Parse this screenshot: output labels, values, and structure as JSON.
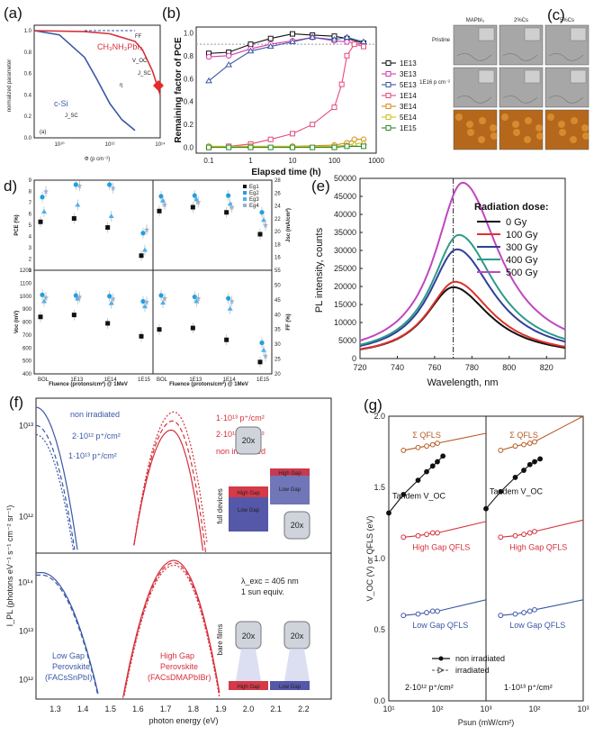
{
  "panel_labels": [
    "(a)",
    "(b)",
    "(c)",
    "d)",
    "(e)",
    "(f)",
    "(g)"
  ],
  "colors": {
    "blue": "#3a57a6",
    "red": "#d6303c",
    "orange": "#b85a21",
    "black": "#111111",
    "green": "#2c8a2c",
    "gold": "#d09a1a",
    "magenta": "#d63ab0"
  },
  "chart_data": [
    {
      "id": "a",
      "type": "line",
      "title": "",
      "xlabel": "Φ (p cm⁻²)",
      "ylabel": "normalized parameter",
      "xscale": "log",
      "xlim": [
        1000000000.0,
        100000000000000.0
      ],
      "ylim": [
        0,
        1.05
      ],
      "x_ticks": [
        "10¹⁰",
        "10¹²",
        "10¹⁴"
      ],
      "y_ticks": [
        "0.0",
        "0.2",
        "0.4",
        "0.6",
        "0.8",
        "1.0"
      ],
      "inner_label": "(a)",
      "annotations": [
        "CH₃NH₃PbI₃",
        "FF",
        "V_OC",
        "J_SC",
        "η",
        "c-Si",
        "J_SC"
      ],
      "series": [
        {
          "name": "c-Si",
          "x": [
            1000000000.0,
            10000000000.0,
            100000000000.0,
            300000000000.0,
            1000000000000.0,
            3000000000000.0,
            10000000000000.0
          ],
          "y": [
            1.0,
            0.96,
            0.75,
            0.55,
            0.32,
            0.17,
            0.07
          ]
        },
        {
          "name": "CH₃NH₃PbI₃",
          "x": [
            1000000000.0,
            100000000000.0,
            1000000000000.0,
            10000000000000.0,
            20000000000000.0,
            50000000000000.0,
            100000000000000.0
          ],
          "y": [
            1.0,
            0.99,
            0.97,
            0.9,
            0.82,
            0.62,
            0.4
          ]
        }
      ]
    },
    {
      "id": "b",
      "type": "line",
      "title": "",
      "xlabel": "Elapsed time (h)",
      "ylabel": "Remaining factor of PCE",
      "xscale": "log",
      "xlim": [
        0.05,
        1000
      ],
      "ylim": [
        -0.05,
        1.05
      ],
      "x_ticks": [
        "0.1",
        "1",
        "10",
        "100",
        "1000"
      ],
      "y_ticks": [
        "0.0",
        "0.2",
        "0.4",
        "0.6",
        "0.8",
        "1.0"
      ],
      "series": [
        {
          "name": "1E13",
          "x": [
            0.1,
            0.3,
            1,
            3,
            10,
            30,
            100,
            200,
            500
          ],
          "y": [
            0.82,
            0.83,
            0.9,
            0.95,
            0.99,
            0.98,
            0.97,
            0.95,
            0.91
          ]
        },
        {
          "name": "3E13",
          "x": [
            0.1,
            0.3,
            1,
            3,
            10,
            30,
            100,
            200,
            500
          ],
          "y": [
            0.79,
            0.8,
            0.86,
            0.9,
            0.93,
            0.96,
            0.93,
            0.92,
            0.9
          ]
        },
        {
          "name": "5E13",
          "x": [
            0.1,
            0.3,
            1,
            3,
            10,
            30,
            100,
            200,
            500
          ],
          "y": [
            0.58,
            0.72,
            0.84,
            0.88,
            0.92,
            0.96,
            0.94,
            0.96,
            0.92
          ]
        },
        {
          "name": "1E14",
          "x": [
            0.1,
            0.3,
            1,
            3,
            10,
            30,
            100,
            150,
            200,
            300,
            500
          ],
          "y": [
            0.0,
            0.01,
            0.03,
            0.07,
            0.12,
            0.2,
            0.35,
            0.55,
            0.8,
            0.9,
            0.88
          ]
        },
        {
          "name": "3E14",
          "x": [
            0.1,
            1,
            10,
            100,
            200,
            300,
            500
          ],
          "y": [
            0.01,
            0.01,
            0.01,
            0.02,
            0.04,
            0.07,
            0.07
          ]
        },
        {
          "name": "5E14",
          "x": [
            0.1,
            1,
            10,
            100,
            200,
            300,
            500
          ],
          "y": [
            0.01,
            0.01,
            0.01,
            0.01,
            0.02,
            0.03,
            0.04
          ]
        },
        {
          "name": "1E15",
          "x": [
            0.1,
            0.3,
            1,
            3,
            10,
            30,
            100,
            200,
            500
          ],
          "y": [
            0.0,
            0.0,
            0.0,
            0.0,
            0.0,
            0.0,
            0.0,
            0.01,
            0.01
          ]
        }
      ]
    },
    {
      "id": "c",
      "type": "image-grid",
      "columns": [
        "MAPbI₃",
        "2%Cs",
        "5%Cs"
      ],
      "rows": [
        "Pristine",
        "1E16 p cm⁻²",
        ""
      ],
      "colorbar": [
        "50 nm",
        "-30 nm"
      ]
    },
    {
      "id": "d",
      "type": "scatter",
      "xlabel": "Fluence (protons/cm²) @ 1MeV",
      "x_categories": [
        "BOL",
        "1E13",
        "1E14",
        "1E15"
      ],
      "legend": [
        "Eg1",
        "Eg2",
        "Eg3",
        "Eg4"
      ],
      "subplots": [
        {
          "ylabel": "PCE (%)",
          "ylim": [
            1,
            9
          ],
          "y_ticks": [
            "1",
            "2",
            "3",
            "4",
            "5",
            "6",
            "7",
            "8",
            "9"
          ],
          "series": [
            [
              5.3,
              5.6,
              4.8,
              2.3
            ],
            [
              7.5,
              8.6,
              8.6,
              4.3
            ],
            [
              6.2,
              6.8,
              5.8,
              2.8
            ],
            [
              8.0,
              8.5,
              8.3,
              4.6
            ]
          ]
        },
        {
          "ylabel": "Jsc (mA/cm²)",
          "ylim": [
            14,
            28
          ],
          "y_ticks": [
            "16",
            "18",
            "20",
            "22",
            "24",
            "26",
            "28"
          ],
          "series": [
            [
              23.2,
              23.8,
              23.0,
              19.6
            ],
            [
              25.5,
              25.6,
              25.6,
              23.0
            ],
            [
              24.8,
              25.0,
              24.3,
              21.8
            ],
            [
              24.2,
              24.6,
              23.8,
              21.0
            ]
          ]
        },
        {
          "ylabel": "Voc (mV)",
          "ylim": [
            400,
            1200
          ],
          "y_ticks": [
            "400",
            "500",
            "600",
            "700",
            "800",
            "900",
            "1000",
            "1100",
            "1200"
          ],
          "series": [
            [
              840,
              855,
              790,
              690
            ],
            [
              1010,
              1005,
              1000,
              960
            ],
            [
              960,
              980,
              945,
              920
            ],
            [
              990,
              995,
              980,
              955
            ]
          ]
        },
        {
          "ylabel": "FF (%)",
          "ylim": [
            20,
            55
          ],
          "y_ticks": [
            "20",
            "25",
            "30",
            "35",
            "40",
            "45",
            "50",
            "55"
          ],
          "series": [
            [
              35.0,
              35.5,
              31.5,
              24.0
            ],
            [
              46.5,
              46.0,
              45.5,
              30.5
            ],
            [
              44.0,
              44.5,
              42.0,
              28.0
            ],
            [
              45.5,
              45.5,
              44.5,
              26.0
            ]
          ]
        }
      ]
    },
    {
      "id": "e",
      "type": "line",
      "xlabel": "Wavelength, nm",
      "ylabel": "PL intensity, counts",
      "xlim": [
        720,
        830
      ],
      "ylim": [
        0,
        50000
      ],
      "x_ticks": [
        "720",
        "740",
        "760",
        "780",
        "800",
        "820"
      ],
      "y_ticks": [
        "0",
        "5000",
        "10000",
        "15000",
        "20000",
        "25000",
        "30000",
        "35000",
        "40000",
        "45000",
        "50000"
      ],
      "legend_title": "Radiation dose:",
      "peak_reference_nm": 770,
      "series": [
        {
          "name": "0 Gy",
          "peak": 19500,
          "center": 770
        },
        {
          "name": "100 Gy",
          "peak": 21000,
          "center": 771
        },
        {
          "name": "300 Gy",
          "peak": 30000,
          "center": 772
        },
        {
          "name": "400 Gy",
          "peak": 34000,
          "center": 773
        },
        {
          "name": "500 Gy",
          "peak": 48500,
          "center": 775
        }
      ]
    },
    {
      "id": "f",
      "type": "line",
      "xlabel": "photon energy (eV)",
      "ylabel": "I_PL (photons eV⁻¹ s⁻¹ cm⁻² sr⁻¹)",
      "xscale": "linear",
      "xlim": [
        1.23,
        2.3
      ],
      "yscale": "log",
      "x_ticks": [
        "1.3",
        "1.4",
        "1.5",
        "1.6",
        "1.7",
        "1.8",
        "1.9",
        "2.0",
        "2.1",
        "2.2"
      ],
      "top": {
        "y_ticks": [
          "10¹²",
          "10¹³"
        ],
        "labels": [
          "non irradiated",
          "2·10¹² p⁺/cm²",
          "1·10¹³ p⁺/cm²",
          "1·10¹³ p⁺/cm²",
          "2·10¹² p⁺/cm²",
          "non irradiated"
        ],
        "side_label": "full devices"
      },
      "bottom": {
        "y_ticks": [
          "10¹²",
          "10¹³",
          "10¹⁴"
        ],
        "labels": [
          "λ_exc = 405 nm",
          "1 sun equiv.",
          "Low Gap",
          "Perovskite",
          "(FACsSnPbI)",
          "High Gap",
          "Perovskite",
          "(FACsDMAPbIBr)"
        ],
        "side_label": "bare films"
      },
      "inset_text": [
        "20x",
        "High Gap",
        "Low Gap"
      ]
    },
    {
      "id": "g",
      "type": "line",
      "xlabel": "Psun (mW/cm²)",
      "ylabel": "V_OC (V) or QFLS (eV)",
      "xscale": "log",
      "xlim": [
        10,
        1000
      ],
      "ylim": [
        0,
        2.0
      ],
      "x_ticks": [
        "10¹",
        "10²",
        "10³"
      ],
      "y_ticks": [
        "0.0",
        "0.5",
        "1.0",
        "1.5",
        "2.0"
      ],
      "legend": [
        "non irradiated",
        "irradiated"
      ],
      "subplots": [
        {
          "title": "2·10¹² p⁺/cm²",
          "labels": [
            "Σ QFLS",
            "Tandem V_OC",
            "High Gap QFLS",
            "Low Gap QFLS"
          ],
          "series": [
            {
              "name": "Σ QFLS",
              "x": [
                20,
                40,
                60,
                80,
                100,
                1000
              ],
              "y": [
                1.76,
                1.78,
                1.79,
                1.8,
                1.81,
                1.88
              ]
            },
            {
              "name": "Tandem V_OC",
              "x": [
                10,
                20,
                40,
                60,
                80,
                100,
                130
              ],
              "y": [
                1.32,
                1.45,
                1.55,
                1.61,
                1.65,
                1.68,
                1.72
              ]
            },
            {
              "name": "High Gap QFLS",
              "x": [
                20,
                40,
                60,
                80,
                100,
                1000
              ],
              "y": [
                1.15,
                1.16,
                1.17,
                1.18,
                1.18,
                1.26
              ]
            },
            {
              "name": "Low Gap QFLS",
              "x": [
                20,
                40,
                60,
                80,
                100,
                1000
              ],
              "y": [
                0.6,
                0.61,
                0.62,
                0.63,
                0.63,
                0.71
              ]
            }
          ]
        },
        {
          "title": "1·10¹³ p⁺/cm²",
          "labels": [
            "Σ QFLS",
            "Tandem V_OC",
            "High Gap QFLS",
            "Low Gap QFLS"
          ],
          "series": [
            {
              "name": "Σ QFLS",
              "x": [
                20,
                40,
                60,
                80,
                100,
                1000
              ],
              "y": [
                1.76,
                1.79,
                1.8,
                1.81,
                1.82,
                2.0
              ]
            },
            {
              "name": "Tandem V_OC",
              "x": [
                10,
                20,
                40,
                60,
                80,
                100,
                130
              ],
              "y": [
                1.35,
                1.47,
                1.57,
                1.62,
                1.66,
                1.68,
                1.7
              ]
            },
            {
              "name": "High Gap QFLS",
              "x": [
                20,
                40,
                60,
                80,
                100,
                1000
              ],
              "y": [
                1.15,
                1.16,
                1.17,
                1.18,
                1.19,
                1.27
              ]
            },
            {
              "name": "Low Gap QFLS",
              "x": [
                20,
                40,
                60,
                80,
                100,
                1000
              ],
              "y": [
                0.6,
                0.61,
                0.62,
                0.63,
                0.64,
                0.71
              ]
            }
          ]
        }
      ]
    }
  ]
}
